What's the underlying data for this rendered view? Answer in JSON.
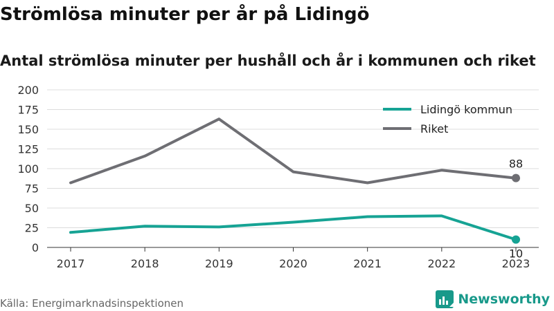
{
  "chart_data": {
    "type": "line",
    "title": "Strömlösa minuter per år på Lidingö",
    "subtitle": "Antal strömlösa minuter per hushåll och år i kommunen och riket",
    "x": [
      "2017",
      "2018",
      "2019",
      "2020",
      "2021",
      "2022",
      "2023"
    ],
    "ylim": [
      0,
      200
    ],
    "yticks": [
      0,
      25,
      50,
      75,
      100,
      125,
      150,
      175,
      200
    ],
    "grid": true,
    "legend_position": "top-right",
    "series": [
      {
        "name": "Lidingö kommun",
        "color": "#16a394",
        "values": [
          19,
          27,
          26,
          32,
          39,
          40,
          10
        ],
        "end_label": "10"
      },
      {
        "name": "Riket",
        "color": "#6e6e73",
        "values": [
          82,
          116,
          163,
          96,
          82,
          98,
          88
        ],
        "end_label": "88"
      }
    ]
  },
  "source": "Källa: Energimarknadsinspektionen",
  "brand": {
    "name": "Newsworthy",
    "icon": "newsworthy-logo-icon",
    "color": "#18998a"
  }
}
